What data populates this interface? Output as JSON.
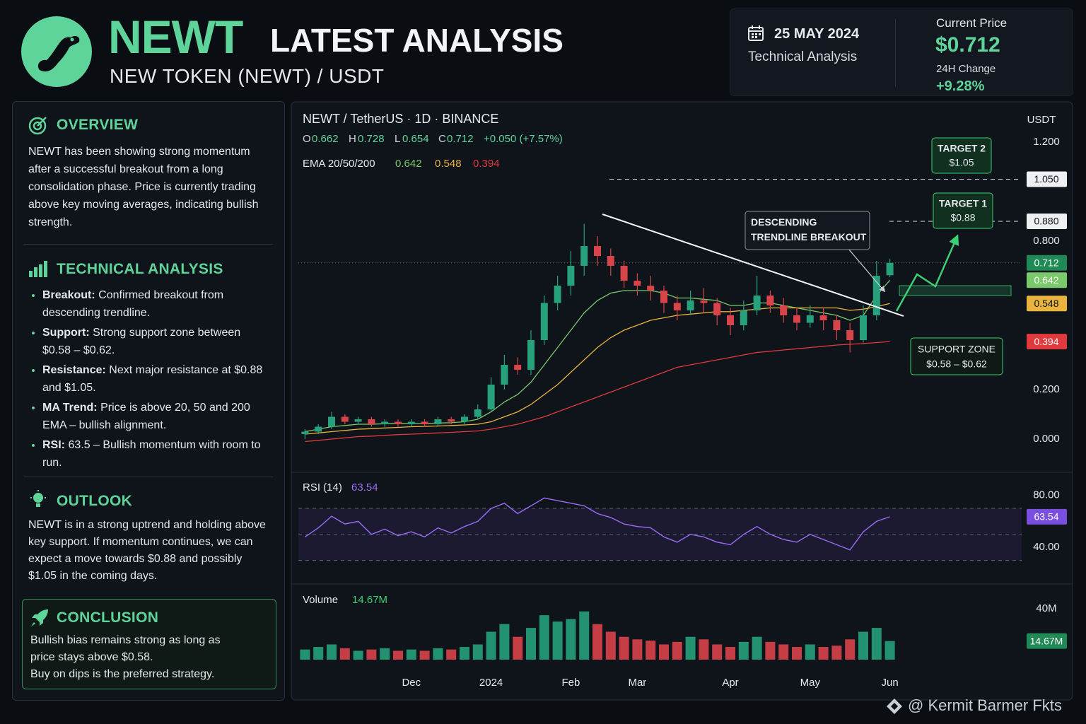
{
  "header": {
    "logo_word": "NEWT",
    "title": "LATEST ANALYSIS",
    "subtitle": "NEW TOKEN (NEWT) / USDT"
  },
  "info_card": {
    "date": "25 MAY 2024",
    "kind": "Technical Analysis",
    "price_label": "Current Price",
    "price": "$0.712",
    "change_label": "24H Change",
    "change": "+9.28%"
  },
  "sidebar": {
    "overview": {
      "title": "OVERVIEW",
      "text": "NEWT has been showing strong momentum after a successful breakout from a long consolidation phase. Price is currently trading above key moving averages, indicating bullish strength."
    },
    "technical": {
      "title": "TECHNICAL ANALYSIS",
      "bullets": [
        {
          "label": "Breakout:",
          "text": "Confirmed breakout from descending trendline."
        },
        {
          "label": "Support:",
          "text": "Strong support zone between $0.58 – $0.62."
        },
        {
          "label": "Resistance:",
          "text": "Next major resistance at $0.88 and $1.05."
        },
        {
          "label": "MA Trend:",
          "text": "Price is above 20, 50 and 200 EMA – bullish alignment."
        },
        {
          "label": "RSI:",
          "text": "63.5 – Bullish momentum with room to run."
        }
      ]
    },
    "outlook": {
      "title": "OUTLOOK",
      "text": "NEWT is in a strong uptrend and holding above key support. If momentum continues, we can expect a move towards $0.88 and possibly $1.05 in the coming days."
    },
    "conclusion": {
      "title": "CONCLUSION",
      "lines": [
        "Bullish bias remains strong as long as price stays above $0.58.",
        "Buy on dips is the preferred strategy."
      ]
    }
  },
  "watermark": "@ Kermit Barmer Fkts",
  "chart_data": [
    {
      "type": "candlestick",
      "title": "NEWT / TetherUS · 1D · BINANCE",
      "unit": "USDT",
      "ohlc_labels": [
        "O",
        "H",
        "L",
        "C"
      ],
      "change": "+0.050 (+7.57%)",
      "ema_label": "EMA 20/50/200",
      "categories": [
        null,
        null,
        null,
        null,
        null,
        null,
        null,
        null,
        "Dec",
        null,
        null,
        null,
        null,
        null,
        "2024",
        null,
        null,
        null,
        null,
        null,
        "Feb",
        null,
        null,
        null,
        null,
        "Mar",
        null,
        null,
        null,
        null,
        null,
        null,
        "Apr",
        null,
        null,
        null,
        null,
        null,
        "May",
        null,
        null,
        null,
        null,
        null,
        "Jun"
      ],
      "open": [
        0.02,
        0.03,
        0.05,
        0.09,
        0.07,
        0.08,
        0.06,
        0.07,
        0.06,
        0.07,
        0.06,
        0.08,
        0.07,
        0.09,
        0.12,
        0.22,
        0.3,
        0.28,
        0.4,
        0.55,
        0.62,
        0.7,
        0.78,
        0.74,
        0.7,
        0.64,
        0.62,
        0.6,
        0.55,
        0.52,
        0.56,
        0.55,
        0.5,
        0.46,
        0.52,
        0.58,
        0.54,
        0.5,
        0.47,
        0.5,
        0.48,
        0.44,
        0.4,
        0.5,
        0.662
      ],
      "high": [
        0.04,
        0.06,
        0.11,
        0.1,
        0.09,
        0.09,
        0.08,
        0.08,
        0.08,
        0.08,
        0.09,
        0.09,
        0.1,
        0.14,
        0.25,
        0.34,
        0.33,
        0.44,
        0.58,
        0.66,
        0.76,
        0.87,
        0.82,
        0.77,
        0.72,
        0.67,
        0.66,
        0.62,
        0.58,
        0.6,
        0.61,
        0.57,
        0.53,
        0.56,
        0.66,
        0.6,
        0.57,
        0.53,
        0.54,
        0.53,
        0.5,
        0.47,
        0.54,
        0.72,
        0.728
      ],
      "low": [
        0.0,
        0.02,
        0.04,
        0.06,
        0.06,
        0.05,
        0.05,
        0.05,
        0.05,
        0.05,
        0.05,
        0.06,
        0.06,
        0.08,
        0.11,
        0.2,
        0.26,
        0.26,
        0.38,
        0.52,
        0.58,
        0.66,
        0.7,
        0.66,
        0.61,
        0.58,
        0.56,
        0.51,
        0.48,
        0.5,
        0.51,
        0.46,
        0.42,
        0.44,
        0.5,
        0.51,
        0.47,
        0.44,
        0.45,
        0.44,
        0.4,
        0.35,
        0.39,
        0.48,
        0.654
      ],
      "close": [
        0.03,
        0.05,
        0.09,
        0.07,
        0.08,
        0.06,
        0.07,
        0.06,
        0.07,
        0.06,
        0.08,
        0.07,
        0.09,
        0.12,
        0.22,
        0.3,
        0.28,
        0.4,
        0.55,
        0.62,
        0.7,
        0.78,
        0.74,
        0.7,
        0.64,
        0.62,
        0.6,
        0.55,
        0.52,
        0.56,
        0.55,
        0.5,
        0.46,
        0.52,
        0.58,
        0.54,
        0.5,
        0.47,
        0.5,
        0.48,
        0.44,
        0.4,
        0.5,
        0.66,
        0.712
      ],
      "up_color": "#26a17b",
      "down_color": "#d9434a",
      "lines": [
        {
          "color": "#7ac96a",
          "values": [
            0.03,
            0.04,
            0.05,
            0.055,
            0.06,
            0.06,
            0.062,
            0.062,
            0.064,
            0.063,
            0.065,
            0.066,
            0.07,
            0.08,
            0.11,
            0.15,
            0.18,
            0.23,
            0.3,
            0.37,
            0.44,
            0.51,
            0.56,
            0.59,
            0.6,
            0.6,
            0.6,
            0.59,
            0.57,
            0.57,
            0.565,
            0.56,
            0.54,
            0.54,
            0.55,
            0.55,
            0.54,
            0.53,
            0.52,
            0.51,
            0.5,
            0.48,
            0.5,
            0.58,
            0.642
          ]
        },
        {
          "color": "#e8b33e",
          "values": [
            0.02,
            0.025,
            0.03,
            0.035,
            0.04,
            0.042,
            0.045,
            0.047,
            0.05,
            0.051,
            0.053,
            0.055,
            0.057,
            0.06,
            0.07,
            0.09,
            0.11,
            0.14,
            0.18,
            0.22,
            0.27,
            0.32,
            0.37,
            0.41,
            0.44,
            0.46,
            0.48,
            0.49,
            0.5,
            0.505,
            0.51,
            0.515,
            0.515,
            0.52,
            0.525,
            0.53,
            0.53,
            0.53,
            0.53,
            0.53,
            0.53,
            0.52,
            0.525,
            0.535,
            0.548
          ]
        },
        {
          "color": "#e0393e",
          "values": [
            -0.01,
            -0.005,
            0,
            0.005,
            0.01,
            0.012,
            0.015,
            0.018,
            0.02,
            0.022,
            0.025,
            0.027,
            0.03,
            0.033,
            0.04,
            0.05,
            0.06,
            0.075,
            0.09,
            0.11,
            0.13,
            0.15,
            0.17,
            0.19,
            0.21,
            0.23,
            0.25,
            0.27,
            0.29,
            0.3,
            0.31,
            0.32,
            0.33,
            0.34,
            0.35,
            0.355,
            0.36,
            0.365,
            0.37,
            0.375,
            0.38,
            0.383,
            0.386,
            0.39,
            0.394
          ]
        }
      ],
      "ylim": [
        -0.12,
        1.34
      ],
      "yticks": [
        {
          "value": 1.2,
          "label": "1.200"
        },
        {
          "value": 0.8,
          "label": "0.800"
        },
        {
          "value": 0.2,
          "label": "0.200"
        },
        {
          "value": 0,
          "label": "0.000"
        }
      ],
      "levels": [
        {
          "value": 1.05,
          "label": "1.050"
        },
        {
          "value": 0.88,
          "label": "0.880"
        }
      ],
      "support_zone": [
        0.58,
        0.62
      ],
      "annotations": {
        "target2": {
          "title": "TARGET 2",
          "price": "$1.05"
        },
        "target1": {
          "title": "TARGET 1",
          "price": "$0.88"
        },
        "trendline": "DESCENDING TRENDLINE BREAKOUT",
        "support": {
          "title": "SUPPORT ZONE",
          "range": "$0.58 – $0.62"
        }
      }
    },
    {
      "type": "line",
      "title": "RSI (14)",
      "color": "#9b6cf5",
      "values": [
        48,
        55,
        64,
        58,
        60,
        50,
        54,
        49,
        52,
        48,
        55,
        51,
        56,
        60,
        70,
        74,
        66,
        72,
        78,
        76,
        74,
        72,
        66,
        63,
        58,
        56,
        55,
        48,
        44,
        50,
        48,
        44,
        42,
        50,
        56,
        50,
        46,
        44,
        50,
        46,
        42,
        38,
        52,
        60,
        63.54
      ],
      "ylim": [
        15,
        94
      ],
      "yticks": [
        {
          "value": 80,
          "label": "80.00"
        },
        {
          "value": 40,
          "label": "40.00"
        }
      ],
      "levels": [
        30,
        50,
        70
      ]
    },
    {
      "type": "bar",
      "title": "Volume",
      "values": [
        8,
        10,
        12,
        9,
        7,
        8,
        9,
        7,
        8,
        7,
        9,
        8,
        10,
        12,
        22,
        28,
        18,
        25,
        35,
        30,
        32,
        38,
        28,
        22,
        18,
        16,
        15,
        12,
        14,
        18,
        16,
        12,
        10,
        14,
        18,
        14,
        12,
        10,
        12,
        10,
        11,
        16,
        22,
        25,
        14.67
      ],
      "value_labels": [
        null,
        null,
        null,
        null,
        null,
        null,
        null,
        null,
        null,
        null,
        null,
        null,
        null,
        null,
        null,
        null,
        null,
        null,
        null,
        null,
        null,
        null,
        null,
        null,
        null,
        null,
        null,
        null,
        null,
        null,
        null,
        null,
        null,
        null,
        null,
        null,
        null,
        null,
        null,
        null,
        null,
        null,
        null,
        null,
        "14.67M"
      ],
      "ylim": [
        0,
        49
      ],
      "yticks": [
        {
          "value": 40,
          "label": "40M"
        }
      ]
    }
  ]
}
